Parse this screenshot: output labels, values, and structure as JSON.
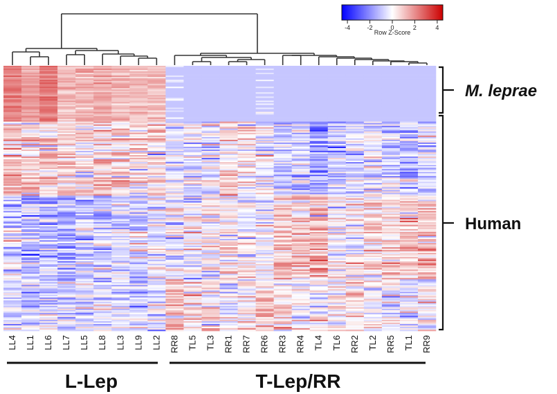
{
  "chart_data": {
    "type": "heatmap",
    "title": "",
    "color_scale": {
      "title": "Row Z-Score",
      "ticks": [
        -4,
        -2,
        0,
        2,
        4
      ],
      "range": [
        -4.5,
        4.5
      ],
      "low_color": "#0000ff",
      "mid_color": "#ffffff",
      "high_color": "#cc0000"
    },
    "columns": [
      "LL4",
      "LL1",
      "LL6",
      "LL7",
      "LL5",
      "LL8",
      "LL3",
      "LL9",
      "LL2",
      "RR8",
      "TL5",
      "TL3",
      "RR1",
      "RR7",
      "RR6",
      "RR3",
      "RR4",
      "TL4",
      "TL6",
      "RR2",
      "TL2",
      "RR5",
      "TL1",
      "RR9"
    ],
    "column_groups": [
      {
        "label": "L-Lep",
        "columns": [
          "LL4",
          "LL1",
          "LL6",
          "LL7",
          "LL5",
          "LL8",
          "LL3",
          "LL9",
          "LL2"
        ]
      },
      {
        "label": "T-Lep/RR",
        "columns": [
          "RR8",
          "TL5",
          "TL3",
          "RR1",
          "RR7",
          "RR6",
          "RR3",
          "RR4",
          "TL4",
          "TL6",
          "RR2",
          "TL2",
          "RR5",
          "TL1",
          "RR9"
        ]
      }
    ],
    "row_groups": [
      {
        "label": "M. leprae",
        "italic": true,
        "approx_row_fraction": 0.21
      },
      {
        "label": "Human",
        "italic": false,
        "approx_row_fraction": 0.79
      }
    ],
    "approx_mean_zscore": {
      "M. leprae": {
        "LL4": 2.2,
        "LL1": 1.8,
        "LL6": 2.4,
        "LL7": 1.2,
        "LL5": 1.4,
        "LL8": 1.5,
        "LL3": 1.2,
        "LL9": 1.0,
        "LL2": 1.1,
        "RR8": -0.8,
        "TL5": -1.0,
        "TL3": -1.0,
        "RR1": -1.0,
        "RR7": -1.0,
        "RR6": -0.7,
        "RR3": -0.9,
        "RR4": -1.0,
        "TL4": -1.0,
        "TL6": -1.0,
        "RR2": -1.0,
        "TL2": -1.0,
        "RR5": -1.0,
        "TL1": -1.0,
        "RR9": -1.0
      },
      "Human_upper": {
        "LL4": 1.0,
        "LL1": 0.9,
        "LL6": 1.0,
        "LL7": 0.8,
        "LL5": 0.6,
        "LL8": 0.7,
        "LL3": 0.6,
        "LL9": 0.5,
        "LL2": 0.5,
        "RR8": -0.3,
        "TL5": -0.4,
        "TL3": -0.5,
        "RR1": 0.4,
        "RR7": 0.1,
        "RR6": -0.1,
        "RR3": -0.9,
        "RR4": -0.8,
        "TL4": -1.5,
        "TL6": -1.0,
        "RR2": -0.8,
        "TL2": -0.4,
        "RR5": -0.7,
        "TL1": -1.1,
        "RR9": -0.8
      },
      "Human_middle": {
        "LL4": -0.5,
        "LL1": -1.0,
        "LL6": -1.2,
        "LL7": -1.6,
        "LL5": -0.8,
        "LL8": -0.9,
        "LL3": -0.5,
        "LL9": -0.6,
        "LL2": -0.3,
        "RR8": -0.3,
        "TL5": -0.1,
        "TL3": 0.0,
        "RR1": 0.2,
        "RR7": 0.1,
        "RR6": -0.1,
        "RR3": 1.1,
        "RR4": 1.0,
        "TL4": 1.3,
        "TL6": 0.2,
        "RR2": 0.0,
        "TL2": 0.6,
        "RR5": 0.9,
        "TL1": 1.0,
        "RR9": 1.0
      },
      "Human_lower": {
        "LL4": -0.6,
        "LL1": -0.7,
        "LL6": -0.8,
        "LL7": -0.6,
        "LL5": -0.3,
        "LL8": -0.4,
        "LL3": -0.5,
        "LL9": -0.6,
        "LL2": -0.5,
        "RR8": 1.1,
        "TL5": 0.4,
        "TL3": 0.3,
        "RR1": -0.2,
        "RR7": 0.3,
        "RR6": 0.6,
        "RR3": 0.3,
        "RR4": 0.1,
        "TL4": -0.1,
        "TL6": 0.4,
        "RR2": 0.5,
        "TL2": 0.0,
        "RR5": -0.1,
        "TL1": -0.2,
        "RR9": -0.1
      }
    },
    "xlabel": "",
    "ylabel": ""
  },
  "labels": {
    "legend_title": "Row Z-Score",
    "legend_ticks": [
      "-4",
      "-2",
      "0",
      "2",
      "4"
    ],
    "group_left": "L-Lep",
    "group_right": "T-Lep/RR",
    "row_group_top": "M. leprae",
    "row_group_bottom": "Human"
  }
}
